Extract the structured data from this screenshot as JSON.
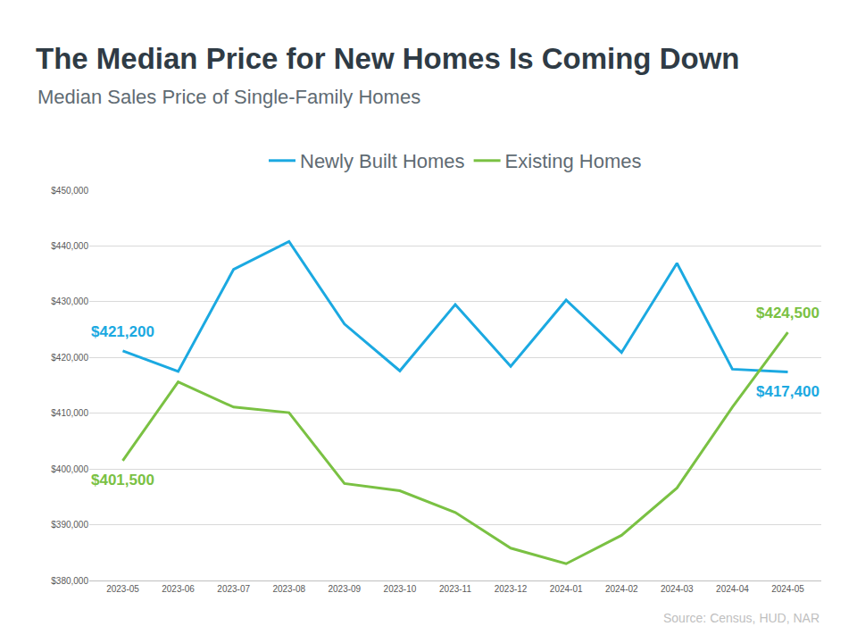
{
  "chart_data": {
    "type": "line",
    "title": "The Median Price for New Homes Is Coming Down",
    "subtitle": "Median Sales Price of Single-Family Homes",
    "source": "Source: Census, HUD, NAR",
    "x": [
      "2023-05",
      "2023-06",
      "2023-07",
      "2023-08",
      "2023-09",
      "2023-10",
      "2023-11",
      "2023-12",
      "2024-01",
      "2024-02",
      "2024-03",
      "2024-04",
      "2024-05"
    ],
    "series": [
      {
        "name": "Newly Built Homes",
        "color": "#1ba9e1",
        "values": [
          421200,
          417500,
          435800,
          440800,
          426000,
          417600,
          429500,
          418400,
          430300,
          420900,
          436900,
          417900,
          417400
        ],
        "value_labels": [
          "$421,200",
          null,
          null,
          null,
          null,
          null,
          null,
          null,
          null,
          null,
          null,
          null,
          "$417,400"
        ]
      },
      {
        "name": "Existing Homes",
        "color": "#7ac143",
        "values": [
          401500,
          415600,
          411100,
          410100,
          397400,
          396100,
          392200,
          385800,
          383000,
          388100,
          396600,
          411100,
          424500
        ],
        "value_labels": [
          "$401,500",
          null,
          null,
          null,
          null,
          null,
          null,
          null,
          null,
          null,
          null,
          null,
          "$424,500"
        ]
      }
    ],
    "ylim": [
      380000,
      450000
    ],
    "yticks": [
      {
        "value": 380000,
        "label": "$380,000"
      },
      {
        "value": 390000,
        "label": "$390,000"
      },
      {
        "value": 400000,
        "label": "$400,000"
      },
      {
        "value": 410000,
        "label": "$410,000"
      },
      {
        "value": 420000,
        "label": "$420,000"
      },
      {
        "value": 430000,
        "label": "$430,000"
      },
      {
        "value": 440000,
        "label": "$440,000"
      },
      {
        "value": 450000,
        "label": "$450,000"
      }
    ],
    "grid": true,
    "legend": "top"
  }
}
